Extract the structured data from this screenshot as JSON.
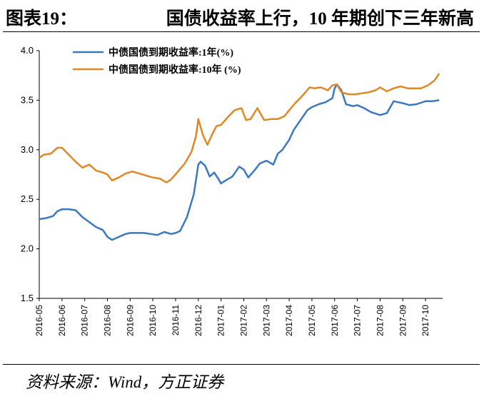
{
  "header": {
    "label": "图表19：",
    "title": "国债收益率上行，10 年期创下三年新高"
  },
  "source": "资料来源：Wind，方正证券",
  "chart_data": {
    "type": "line",
    "title": "国债收益率上行，10 年期创下三年新高",
    "xlabel": "",
    "ylabel": "",
    "ylim": [
      1.5,
      4.0
    ],
    "yticks": [
      "1.5",
      "2.0",
      "2.5",
      "3.0",
      "3.5",
      "4.0"
    ],
    "xticks": [
      "2016-05",
      "2016-06",
      "2016-07",
      "2016-08",
      "2016-09",
      "2016-10",
      "2016-11",
      "2016-12",
      "2017-01",
      "2017-02",
      "2017-03",
      "2017-04",
      "2017-05",
      "2017-06",
      "2017-07",
      "2017-08",
      "2017-09",
      "2017-10"
    ],
    "grid": false,
    "legend_position": "top-left",
    "series": [
      {
        "name": "中债国债到期收益率:1年(%)",
        "color": "#3a78c2",
        "x": [
          0,
          0.3,
          0.6,
          0.8,
          1.0,
          1.3,
          1.6,
          1.9,
          2.2,
          2.5,
          2.8,
          3.0,
          3.2,
          3.5,
          3.8,
          4.0,
          4.3,
          4.6,
          4.9,
          5.2,
          5.5,
          5.8,
          6.0,
          6.2,
          6.5,
          6.8,
          7.0,
          7.1,
          7.3,
          7.5,
          7.7,
          7.9,
          8.0,
          8.2,
          8.5,
          8.8,
          9.0,
          9.2,
          9.5,
          9.7,
          10.0,
          10.3,
          10.5,
          10.7,
          11.0,
          11.2,
          11.5,
          11.8,
          12.0,
          12.3,
          12.6,
          12.9,
          13.0,
          13.1,
          13.3,
          13.5,
          13.8,
          14.0,
          14.3,
          14.6,
          15.0,
          15.3,
          15.6,
          16.0,
          16.3,
          16.6,
          17.0,
          17.3,
          17.6
        ],
        "values": [
          2.3,
          2.31,
          2.33,
          2.38,
          2.4,
          2.4,
          2.39,
          2.32,
          2.27,
          2.22,
          2.19,
          2.12,
          2.09,
          2.12,
          2.15,
          2.16,
          2.16,
          2.16,
          2.15,
          2.14,
          2.17,
          2.15,
          2.16,
          2.18,
          2.32,
          2.55,
          2.85,
          2.88,
          2.84,
          2.73,
          2.77,
          2.7,
          2.66,
          2.69,
          2.73,
          2.83,
          2.8,
          2.72,
          2.8,
          2.86,
          2.89,
          2.85,
          2.96,
          3.0,
          3.1,
          3.2,
          3.3,
          3.4,
          3.43,
          3.46,
          3.48,
          3.52,
          3.62,
          3.66,
          3.6,
          3.46,
          3.44,
          3.45,
          3.42,
          3.38,
          3.35,
          3.37,
          3.49,
          3.47,
          3.45,
          3.46,
          3.49,
          3.49,
          3.5
        ]
      },
      {
        "name": "中债国债到期收益率:10年 (%)",
        "color": "#e08726",
        "x": [
          0,
          0.2,
          0.5,
          0.8,
          1.0,
          1.3,
          1.6,
          1.9,
          2.2,
          2.5,
          2.8,
          3.0,
          3.2,
          3.5,
          3.8,
          4.1,
          4.4,
          4.7,
          5.0,
          5.3,
          5.6,
          5.8,
          6.1,
          6.4,
          6.7,
          6.9,
          7.0,
          7.2,
          7.4,
          7.6,
          7.8,
          8.0,
          8.3,
          8.6,
          8.9,
          9.1,
          9.3,
          9.6,
          9.9,
          10.2,
          10.5,
          10.8,
          11.0,
          11.3,
          11.6,
          11.9,
          12.1,
          12.4,
          12.7,
          12.9,
          13.1,
          13.3,
          13.6,
          13.9,
          14.2,
          14.5,
          14.8,
          15.0,
          15.3,
          15.6,
          15.9,
          16.2,
          16.5,
          16.8,
          17.1,
          17.4,
          17.6
        ],
        "values": [
          2.92,
          2.95,
          2.96,
          3.02,
          3.02,
          2.95,
          2.88,
          2.82,
          2.85,
          2.79,
          2.77,
          2.75,
          2.69,
          2.72,
          2.76,
          2.78,
          2.76,
          2.74,
          2.72,
          2.71,
          2.67,
          2.7,
          2.78,
          2.86,
          2.98,
          3.14,
          3.31,
          3.15,
          3.05,
          3.15,
          3.24,
          3.25,
          3.33,
          3.4,
          3.42,
          3.3,
          3.31,
          3.42,
          3.3,
          3.31,
          3.31,
          3.34,
          3.4,
          3.48,
          3.55,
          3.63,
          3.62,
          3.63,
          3.6,
          3.65,
          3.66,
          3.58,
          3.56,
          3.56,
          3.57,
          3.58,
          3.6,
          3.63,
          3.59,
          3.62,
          3.64,
          3.62,
          3.62,
          3.62,
          3.65,
          3.7,
          3.77
        ]
      }
    ]
  }
}
